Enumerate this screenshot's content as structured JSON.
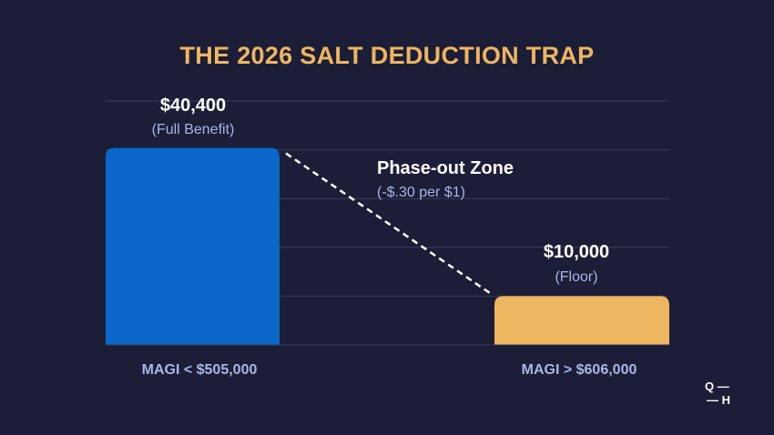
{
  "title": "THE 2026 SALT DEDUCTION TRAP",
  "chart_data": {
    "type": "bar",
    "title": "THE 2026 SALT DEDUCTION TRAP",
    "categories": [
      "MAGI < $505,000",
      "MAGI > $606,000"
    ],
    "values": [
      40400,
      10000
    ],
    "value_labels": [
      "$40,400",
      "$10,000"
    ],
    "sublabels": [
      "(Full Benefit)",
      "(Floor)"
    ],
    "bar_colors": [
      "#0a66c8",
      "#eeb661"
    ],
    "ylim": [
      0,
      50000
    ],
    "y_gridlines": [
      10000,
      20000,
      30000,
      40000,
      50000
    ],
    "grid": true,
    "annotation": {
      "title": "Phase-out Zone",
      "subtitle": "(-$.30 per $1)",
      "from_value": 40400,
      "to_value": 10000
    },
    "xlabel": "",
    "ylabel": ""
  },
  "logo": {
    "line1": "Q",
    "line2": "H"
  }
}
